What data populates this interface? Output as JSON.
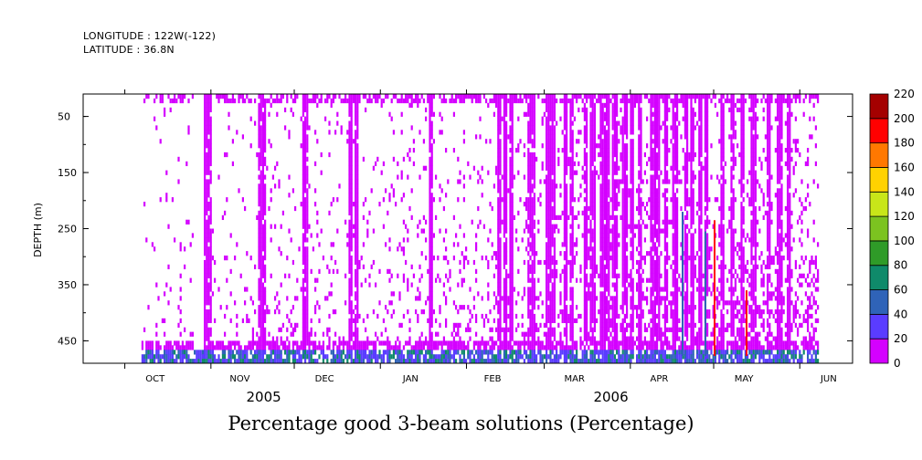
{
  "header": {
    "longitude": "LONGITUDE : 122W(-122)",
    "latitude": "LATITUDE : 36.8N"
  },
  "chart_data": {
    "type": "heatmap",
    "title": "Percentage good 3-beam solutions (Percentage)",
    "xlabel": "",
    "ylabel": "DEPTH (m)",
    "x_month_labels": [
      "OCT",
      "NOV",
      "DEC",
      "JAN",
      "FEB",
      "MAR",
      "APR",
      "MAY",
      "JUN"
    ],
    "x_year_labels": [
      "2005",
      "2006"
    ],
    "y_ticks": [
      50,
      150,
      250,
      350,
      450
    ],
    "ylim": [
      10,
      490
    ],
    "y_inverted": true,
    "x_range": [
      "2005-09-16",
      "2006-06-20"
    ],
    "data_extent": [
      "2005-10-07",
      "2006-06-08"
    ],
    "colorbar": {
      "levels": [
        0,
        20,
        40,
        60,
        80,
        100,
        120,
        140,
        160,
        180,
        200,
        220
      ],
      "colors": [
        "#d400ff",
        "#5a3cff",
        "#2f63b8",
        "#0f8a6a",
        "#2f9b28",
        "#7cc320",
        "#c8e619",
        "#ffd200",
        "#ff7800",
        "#ff0000",
        "#a40000"
      ]
    },
    "description_values": {
      "dominant_value_range": [
        0,
        20
      ],
      "near_bottom_range": [
        20,
        80
      ]
    }
  }
}
